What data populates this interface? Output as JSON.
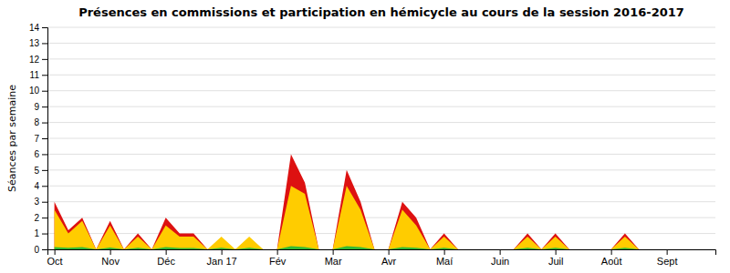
{
  "chart_data": {
    "type": "area",
    "title": "Présences en commissions et participation en hémicycle au cours de la session 2016-2017",
    "ylabel": "Séances par semaine",
    "categories": [
      "Oct",
      null,
      null,
      null,
      "Nov",
      null,
      null,
      null,
      "Déc",
      null,
      null,
      null,
      "Jan 17",
      null,
      null,
      null,
      "Fév",
      null,
      null,
      null,
      "Mar",
      null,
      null,
      null,
      "Avr",
      null,
      null,
      null,
      "Maí",
      null,
      null,
      null,
      "Juin",
      null,
      null,
      null,
      "Juil",
      null,
      null,
      null,
      "Août",
      null,
      null,
      null,
      "Sept",
      null,
      null,
      null
    ],
    "series": [
      {
        "color": "#dd1111",
        "values": [
          3,
          1.2,
          2.0,
          0,
          1.8,
          0,
          1.0,
          0,
          2.0,
          1.0,
          1.0,
          0,
          0.5,
          0,
          0.4,
          0,
          0,
          6.0,
          4.2,
          0,
          0,
          5.0,
          3.0,
          0,
          0,
          3.0,
          2.0,
          0,
          1.0,
          0,
          0,
          0,
          0,
          0,
          1.0,
          0,
          1.0,
          0,
          0,
          0,
          0,
          1.0,
          0,
          0,
          0,
          0,
          0,
          0
        ]
      },
      {
        "color": "#ffcc00",
        "values": [
          2.5,
          1.0,
          1.8,
          0,
          1.5,
          0,
          0.8,
          0,
          1.5,
          0.8,
          0.8,
          0,
          0.8,
          0,
          0.8,
          0,
          0,
          4.0,
          3.5,
          0,
          0,
          4.0,
          2.5,
          0,
          0,
          2.5,
          1.5,
          0,
          0.8,
          0,
          0,
          0,
          0,
          0,
          0.8,
          0,
          0.8,
          0,
          0,
          0,
          0,
          0.8,
          0,
          0,
          0,
          0,
          0,
          0
        ]
      },
      {
        "color": "#33bb33",
        "values": [
          0.15,
          0.1,
          0.15,
          0,
          0.12,
          0,
          0.1,
          0,
          0.15,
          0.08,
          0.08,
          0,
          0.1,
          0,
          0.1,
          0,
          0,
          0.2,
          0.15,
          0,
          0,
          0.2,
          0.15,
          0,
          0,
          0.15,
          0.1,
          0,
          0.1,
          0,
          0,
          0,
          0,
          0,
          0.1,
          0,
          0.1,
          0,
          0,
          0,
          0,
          0.1,
          0,
          0,
          0,
          0,
          0,
          0
        ]
      }
    ],
    "stacked": false,
    "ylim": [
      0,
      14
    ],
    "yticks": [
      0,
      1,
      2,
      3,
      4,
      5,
      6,
      7,
      8,
      9,
      10,
      11,
      12,
      13,
      14
    ],
    "grid": true
  }
}
